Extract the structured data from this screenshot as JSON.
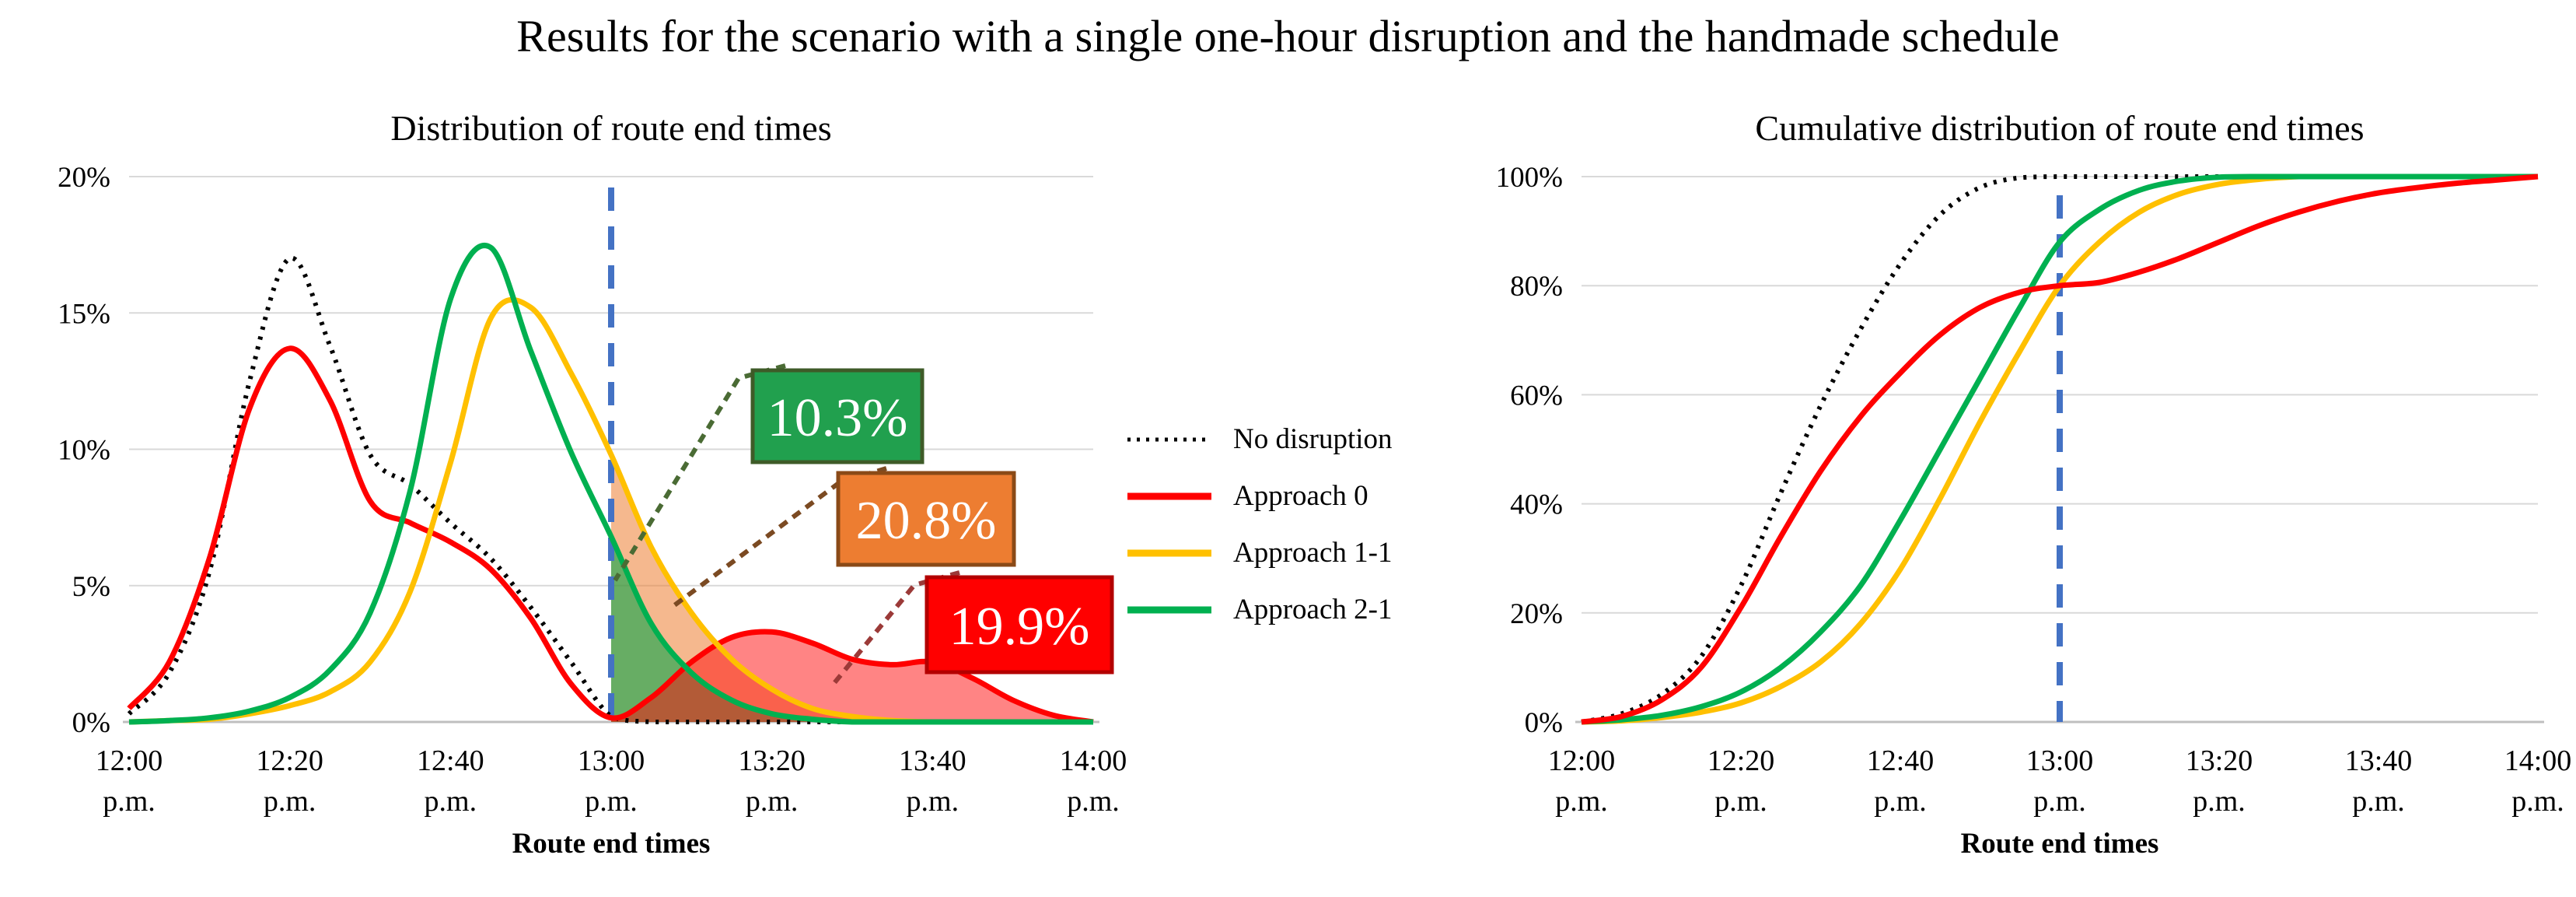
{
  "title": "Results for the scenario with a single one-hour disruption and the handmade schedule",
  "legend": {
    "items": [
      {
        "label": "No disruption",
        "color": "#000000",
        "line_style": "dotted"
      },
      {
        "label": "Approach 0",
        "color": "#FF0000",
        "line_style": "solid"
      },
      {
        "label": "Approach 1-1",
        "color": "#FFC000",
        "line_style": "solid"
      },
      {
        "label": "Approach 2-1",
        "color": "#00B050",
        "line_style": "solid"
      }
    ]
  },
  "colors": {
    "grid": "#D9D9D9",
    "axis": "#BFBFBF",
    "disruption_line": "#4472C4",
    "fill_orange": "rgba(237,125,49,0.55)",
    "fill_green": "rgba(0,165,70,0.58)",
    "fill_red": "rgba(255,10,10,0.5)"
  },
  "chart_data": [
    {
      "type": "line",
      "title": "Distribution of route end times",
      "xlabel": "Route end times",
      "x_tick_labels": [
        [
          "12:00",
          "p.m."
        ],
        [
          "12:20",
          "p.m."
        ],
        [
          "12:40",
          "p.m."
        ],
        [
          "13:00",
          "p.m."
        ],
        [
          "13:20",
          "p.m."
        ],
        [
          "13:40",
          "p.m."
        ],
        [
          "14:00",
          "p.m."
        ]
      ],
      "x_minutes_range": [
        0,
        120
      ],
      "x_step_minutes": 5,
      "ylim": [
        0,
        20
      ],
      "ytick_values": [
        0,
        5,
        10,
        15,
        20
      ],
      "ytick_labels": [
        "0%",
        "5%",
        "10%",
        "15%",
        "20%"
      ],
      "grid": true,
      "disruption_vline": {
        "x_minutes": 60,
        "at_label": "13:00 p.m."
      },
      "series": [
        {
          "name": "No disruption",
          "color": "#000000",
          "dash": "dotted",
          "values": [
            0.3,
            1.8,
            5.5,
            12.5,
            17,
            13.8,
            9.8,
            8.7,
            7.3,
            6,
            4.2,
            2.2,
            0.2,
            0,
            0,
            0,
            0,
            0,
            0,
            0,
            0,
            0,
            0,
            0,
            0
          ]
        },
        {
          "name": "Approach 0",
          "color": "#FF0000",
          "dash": "solid",
          "fill": "fill_red",
          "fill_from_minutes": 60,
          "fill_z": 3,
          "values": [
            0.5,
            2.2,
            6,
            11.5,
            13.7,
            11.8,
            8.1,
            7.3,
            6.6,
            5.6,
            3.8,
            1.4,
            0.15,
            0.9,
            2.2,
            3.1,
            3.3,
            2.9,
            2.3,
            2.1,
            2.2,
            1.6,
            0.8,
            0.25,
            0
          ]
        },
        {
          "name": "Approach 1-1",
          "color": "#FFC000",
          "dash": "solid",
          "fill": "fill_orange",
          "fill_from_minutes": 60,
          "fill_z": 1,
          "values": [
            0,
            0.05,
            0.1,
            0.3,
            0.6,
            1.1,
            2.2,
            4.8,
            9.5,
            14.8,
            15.2,
            12.8,
            9.8,
            6.4,
            4,
            2.3,
            1.2,
            0.5,
            0.2,
            0.05,
            0,
            0,
            0,
            0,
            0
          ]
        },
        {
          "name": "Approach 2-1",
          "color": "#00B050",
          "dash": "solid",
          "fill": "fill_green",
          "fill_from_minutes": 60,
          "fill_z": 2,
          "values": [
            0,
            0.05,
            0.15,
            0.4,
            0.9,
            1.9,
            4,
            8.5,
            15.5,
            17.4,
            13.6,
            9.9,
            6.8,
            3.6,
            1.8,
            0.8,
            0.3,
            0.1,
            0,
            0,
            0,
            0,
            0,
            0,
            0
          ]
        }
      ],
      "annotations": [
        {
          "label": "10.3%",
          "series": "Approach 2-1",
          "box_fill": "#21A04E",
          "box_border": "#3E5B28",
          "leader_color": "#4A6B34"
        },
        {
          "label": "20.8%",
          "series": "Approach 1-1",
          "box_fill": "#ED7D31",
          "box_border": "#8A4A17",
          "leader_color": "#7B4A22"
        },
        {
          "label": "19.9%",
          "series": "Approach 0",
          "box_fill": "#FF0000",
          "box_border": "#B30000",
          "leader_color": "#9B3A38"
        }
      ]
    },
    {
      "type": "line",
      "title": "Cumulative distribution of route end times",
      "xlabel": "Route end times",
      "x_tick_labels": [
        [
          "12:00",
          "p.m."
        ],
        [
          "12:20",
          "p.m."
        ],
        [
          "12:40",
          "p.m."
        ],
        [
          "13:00",
          "p.m."
        ],
        [
          "13:20",
          "p.m."
        ],
        [
          "13:40",
          "p.m."
        ],
        [
          "14:00",
          "p.m."
        ]
      ],
      "x_minutes_range": [
        0,
        120
      ],
      "x_step_minutes": 5,
      "ylim": [
        0,
        100
      ],
      "ytick_values": [
        0,
        20,
        40,
        60,
        80,
        100
      ],
      "ytick_labels": [
        "0%",
        "20%",
        "40%",
        "60%",
        "80%",
        "100%"
      ],
      "grid": true,
      "disruption_vline": {
        "x_minutes": 60,
        "at_label": "13:00 p.m."
      },
      "series": [
        {
          "name": "No disruption",
          "color": "#000000",
          "dash": "dotted",
          "values": [
            0,
            1.5,
            5,
            12,
            25,
            42,
            58,
            72,
            84,
            93,
            98,
            99.8,
            100,
            100,
            100,
            100,
            100,
            100,
            100,
            100,
            100,
            100,
            100,
            100,
            100
          ]
        },
        {
          "name": "Approach 1-1",
          "color": "#FFC000",
          "dash": "solid",
          "values": [
            0,
            0.2,
            0.8,
            1.8,
            3.5,
            6.5,
            11,
            18,
            28,
            41,
            55,
            68,
            80,
            88,
            93.5,
            96.8,
            98.6,
            99.5,
            100,
            100,
            100,
            100,
            100,
            100,
            100
          ]
        },
        {
          "name": "Approach 2-1",
          "color": "#00B050",
          "dash": "solid",
          "values": [
            0,
            0.4,
            1.2,
            2.8,
            5.5,
            10,
            16.5,
            25,
            37,
            50,
            63,
            76,
            88,
            94,
            97.5,
            99.2,
            99.9,
            100,
            100,
            100,
            100,
            100,
            100,
            100,
            100
          ]
        },
        {
          "name": "Approach 0",
          "color": "#FF0000",
          "dash": "solid",
          "values": [
            0,
            1,
            4,
            10,
            21,
            34,
            46,
            56,
            64,
            71,
            76,
            78.8,
            80,
            80.6,
            82.5,
            85,
            88,
            91,
            93.5,
            95.5,
            97,
            98,
            98.8,
            99.4,
            100
          ]
        }
      ],
      "annotations": []
    }
  ]
}
